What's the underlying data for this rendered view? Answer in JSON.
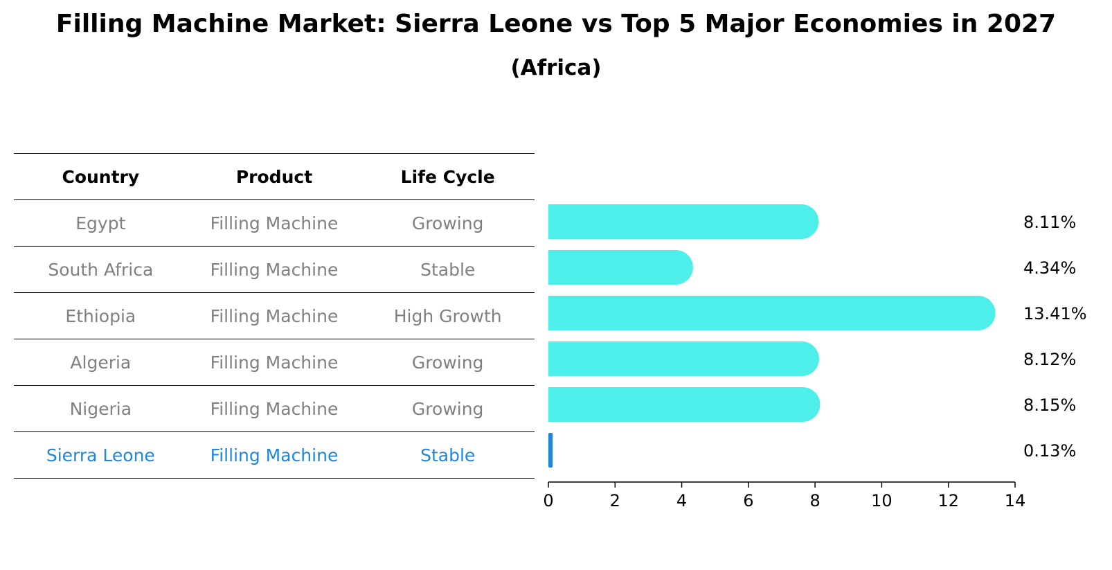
{
  "chart_data": {
    "type": "bar",
    "title": "Filling Machine Market: Sierra Leone vs Top 5 Major Economies in 2027",
    "subtitle": "(Africa)",
    "table_headers": [
      "Country",
      "Product",
      "Life Cycle"
    ],
    "rows": [
      {
        "country": "Egypt",
        "product": "Filling Machine",
        "life_cycle": "Growing",
        "value": 8.11,
        "label": "8.11%"
      },
      {
        "country": "South Africa",
        "product": "Filling Machine",
        "life_cycle": "Stable",
        "value": 4.34,
        "label": "4.34%"
      },
      {
        "country": "Ethiopia",
        "product": "Filling Machine",
        "life_cycle": "High Growth",
        "value": 13.41,
        "label": "13.41%"
      },
      {
        "country": "Algeria",
        "product": "Filling Machine",
        "life_cycle": "Growing",
        "value": 8.12,
        "label": "8.12%"
      },
      {
        "country": "Nigeria",
        "product": "Filling Machine",
        "life_cycle": "Growing",
        "value": 8.15,
        "label": "8.15%"
      },
      {
        "country": "Sierra Leone",
        "product": "Filling Machine",
        "life_cycle": "Stable",
        "value": 0.13,
        "label": "0.13%"
      }
    ],
    "highlight_country": "Sierra Leone",
    "xlim": [
      0,
      14
    ],
    "xticks": [
      0,
      2,
      4,
      6,
      8,
      10,
      12,
      14
    ],
    "xticklabels": [
      "0",
      "2",
      "4",
      "6",
      "8",
      "10",
      "12",
      "14"
    ],
    "colors": {
      "bar": "#4eeeea",
      "highlight": "#1f86d8",
      "axis": "#000000",
      "text_muted": "#808080"
    }
  }
}
